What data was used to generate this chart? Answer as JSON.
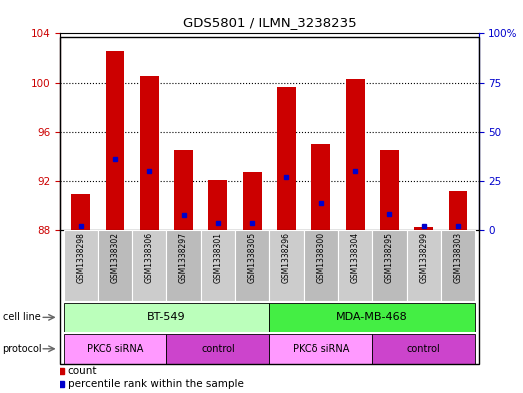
{
  "title": "GDS5801 / ILMN_3238235",
  "samples": [
    "GSM1338298",
    "GSM1338302",
    "GSM1338306",
    "GSM1338297",
    "GSM1338301",
    "GSM1338305",
    "GSM1338296",
    "GSM1338300",
    "GSM1338304",
    "GSM1338295",
    "GSM1338299",
    "GSM1338303"
  ],
  "bar_tops": [
    90.9,
    102.6,
    100.5,
    94.5,
    92.1,
    92.7,
    99.6,
    95.0,
    100.3,
    94.5,
    88.2,
    91.2
  ],
  "bar_base": 88.0,
  "blue_dot_values": [
    88.3,
    93.8,
    92.8,
    89.2,
    88.6,
    88.6,
    92.3,
    90.2,
    92.8,
    89.3,
    88.3,
    88.3
  ],
  "ylim_left": [
    88,
    104
  ],
  "yticks_left": [
    88,
    92,
    96,
    100,
    104
  ],
  "yticks_right": [
    0,
    25,
    50,
    75,
    100
  ],
  "ylim_right": [
    0,
    100
  ],
  "bar_color": "#cc0000",
  "dot_color": "#0000cc",
  "cell_line_groups": [
    {
      "label": "BT-549",
      "start": 0,
      "end": 5,
      "color": "#bbffbb"
    },
    {
      "label": "MDA-MB-468",
      "start": 6,
      "end": 11,
      "color": "#44ee44"
    }
  ],
  "protocol_groups": [
    {
      "label": "PKCδ siRNA",
      "start": 0,
      "end": 2,
      "color": "#ff99ff"
    },
    {
      "label": "control",
      "start": 3,
      "end": 5,
      "color": "#cc44cc"
    },
    {
      "label": "PKCδ siRNA",
      "start": 6,
      "end": 8,
      "color": "#ff99ff"
    },
    {
      "label": "control",
      "start": 9,
      "end": 11,
      "color": "#cc44cc"
    }
  ],
  "plot_bg": "#ffffff",
  "left_axis_color": "#cc0000",
  "right_axis_color": "#0000cc",
  "sample_bg": "#cccccc",
  "fig_bg": "#ffffff"
}
